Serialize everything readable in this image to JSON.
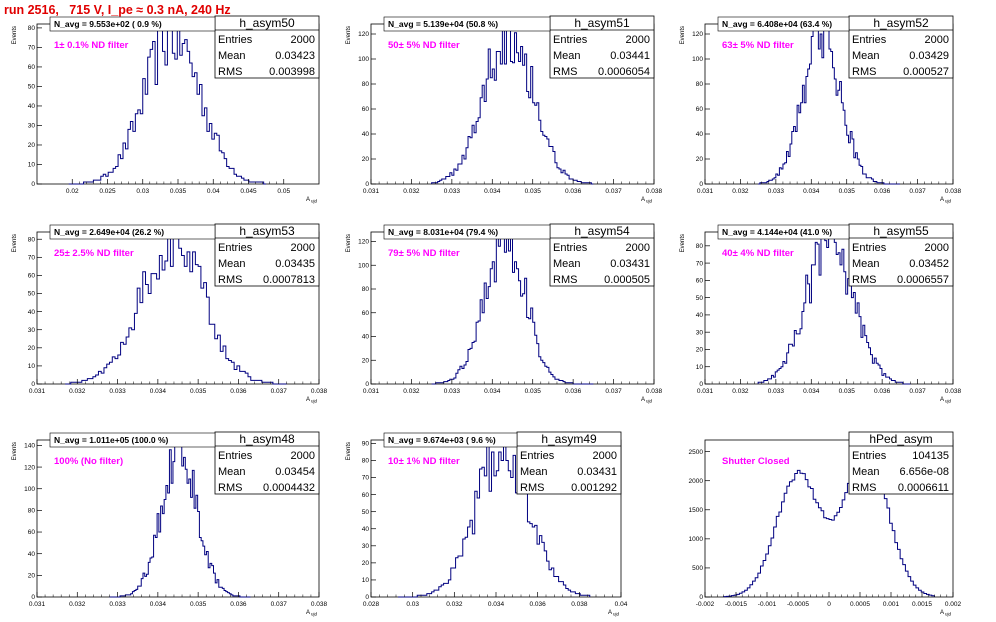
{
  "run_title": "run 2516,   715 V, I_pe ≈ 0.3 nA, 240 Hz",
  "colors": {
    "title": "#e00000",
    "note": "#ff00ff",
    "histogram": "#000080",
    "frame": "#000000"
  },
  "chart_data": [
    {
      "type": "histogram",
      "name": "h_asym50",
      "stats": {
        "entries": "2000",
        "mean": "0.03423",
        "rms": "0.003998"
      },
      "stat_labels": [
        "Entries",
        "Mean",
        "RMS"
      ],
      "n_avg": "N_avg = 9.553e+02 ( 0.9 %)",
      "note": "1± 0.1% ND filter",
      "xlabel": "A_{ujd}",
      "ylabel": "Events",
      "xlim": [
        0.015,
        0.055
      ],
      "ylim": [
        0,
        82
      ],
      "xticks": [
        0.02,
        0.025,
        0.03,
        0.035,
        0.04,
        0.045,
        0.05
      ],
      "xtick_labels": [
        "0.02",
        "0.025",
        "0.03",
        "0.035",
        "0.04",
        "0.045",
        "0.05"
      ],
      "yticks": [
        0,
        10,
        20,
        30,
        40,
        50,
        60,
        70,
        80
      ],
      "ytick_labels": [
        "0",
        "10",
        "20",
        "30",
        "40",
        "50",
        "60",
        "70",
        "80"
      ],
      "bin_edges": [
        0.0195,
        0.0475
      ],
      "shape": {
        "mean": 0.03423,
        "rms": 0.003998,
        "peak": 76
      }
    },
    {
      "type": "histogram",
      "name": "h_asym51",
      "stats": {
        "entries": "2000",
        "mean": "0.03441",
        "rms": "0.0006054"
      },
      "stat_labels": [
        "Entries",
        "Mean",
        "RMS"
      ],
      "n_avg": "N_avg = 5.139e+04 (50.8 %)",
      "note": "50± 5% ND filter",
      "xlabel": "A_{ujd}",
      "ylabel": "Events",
      "xlim": [
        0.031,
        0.038
      ],
      "ylim": [
        0,
        128
      ],
      "xticks": [
        0.031,
        0.032,
        0.033,
        0.034,
        0.035,
        0.036,
        0.037,
        0.038
      ],
      "xtick_labels": [
        "0.031",
        "0.032",
        "0.033",
        "0.034",
        "0.035",
        "0.036",
        "0.037",
        "0.038"
      ],
      "yticks": [
        0,
        20,
        40,
        60,
        80,
        100,
        120
      ],
      "ytick_labels": [
        "0",
        "20",
        "40",
        "60",
        "80",
        "100",
        "120"
      ],
      "bin_edges": [
        0.0325,
        0.0365
      ],
      "shape": {
        "mean": 0.03441,
        "rms": 0.0006054,
        "peak": 124
      }
    },
    {
      "type": "histogram",
      "name": "h_asym52",
      "stats": {
        "entries": "2000",
        "mean": "0.03429",
        "rms": "0.000527"
      },
      "stat_labels": [
        "Entries",
        "Mean",
        "RMS"
      ],
      "n_avg": "N_avg = 6.408e+04 (63.4 %)",
      "note": "63± 5% ND filter",
      "xlabel": "A_{ujd}",
      "ylabel": "Events",
      "xlim": [
        0.031,
        0.038
      ],
      "ylim": [
        0,
        128
      ],
      "xticks": [
        0.031,
        0.032,
        0.033,
        0.034,
        0.035,
        0.036,
        0.037,
        0.038
      ],
      "xtick_labels": [
        "0.031",
        "0.032",
        "0.033",
        "0.034",
        "0.035",
        "0.036",
        "0.037",
        "0.038"
      ],
      "yticks": [
        0,
        20,
        40,
        60,
        80,
        100,
        120
      ],
      "ytick_labels": [
        "0",
        "20",
        "40",
        "60",
        "80",
        "100",
        "120"
      ],
      "bin_edges": [
        0.0325,
        0.0365
      ],
      "shape": {
        "mean": 0.03429,
        "rms": 0.000527,
        "peak": 124
      }
    },
    {
      "type": "histogram",
      "name": "h_asym53",
      "stats": {
        "entries": "2000",
        "mean": "0.03435",
        "rms": "0.0007813"
      },
      "stat_labels": [
        "Entries",
        "Mean",
        "RMS"
      ],
      "n_avg": "N_avg = 2.649e+04 (26.2 %)",
      "note": "25± 2.5% ND filter",
      "xlabel": "A_{ujd}",
      "ylabel": "Events",
      "xlim": [
        0.031,
        0.038
      ],
      "ylim": [
        0,
        84
      ],
      "xticks": [
        0.031,
        0.032,
        0.033,
        0.034,
        0.035,
        0.036,
        0.037,
        0.038
      ],
      "xtick_labels": [
        "0.031",
        "0.032",
        "0.033",
        "0.034",
        "0.035",
        "0.036",
        "0.037",
        "0.038"
      ],
      "yticks": [
        0,
        10,
        20,
        30,
        40,
        50,
        60,
        70,
        80
      ],
      "ytick_labels": [
        "0",
        "10",
        "20",
        "30",
        "40",
        "50",
        "60",
        "70",
        "80"
      ],
      "bin_edges": [
        0.0317,
        0.0372
      ],
      "shape": {
        "mean": 0.03435,
        "rms": 0.0007813,
        "peak": 80
      }
    },
    {
      "type": "histogram",
      "name": "h_asym54",
      "stats": {
        "entries": "2000",
        "mean": "0.03431",
        "rms": "0.000505"
      },
      "stat_labels": [
        "Entries",
        "Mean",
        "RMS"
      ],
      "n_avg": "N_avg = 8.031e+04 (79.4 %)",
      "note": "79± 5% ND filter",
      "xlabel": "A_{ujd}",
      "ylabel": "Events",
      "xlim": [
        0.031,
        0.038
      ],
      "ylim": [
        0,
        128
      ],
      "xticks": [
        0.031,
        0.032,
        0.033,
        0.034,
        0.035,
        0.036,
        0.037,
        0.038
      ],
      "xtick_labels": [
        "0.031",
        "0.032",
        "0.033",
        "0.034",
        "0.035",
        "0.036",
        "0.037",
        "0.038"
      ],
      "yticks": [
        0,
        20,
        40,
        60,
        80,
        100,
        120
      ],
      "ytick_labels": [
        "0",
        "20",
        "40",
        "60",
        "80",
        "100",
        "120"
      ],
      "bin_edges": [
        0.0325,
        0.0365
      ],
      "shape": {
        "mean": 0.03431,
        "rms": 0.000505,
        "peak": 124
      }
    },
    {
      "type": "histogram",
      "name": "h_asym55",
      "stats": {
        "entries": "2000",
        "mean": "0.03452",
        "rms": "0.0006557"
      },
      "stat_labels": [
        "Entries",
        "Mean",
        "RMS"
      ],
      "n_avg": "N_avg = 4.144e+04 (41.0 %)",
      "note": "40± 4% ND filter",
      "xlabel": "A_{ujd}",
      "ylabel": "Events",
      "xlim": [
        0.031,
        0.038
      ],
      "ylim": [
        0,
        88
      ],
      "xticks": [
        0.031,
        0.032,
        0.033,
        0.034,
        0.035,
        0.036,
        0.037,
        0.038
      ],
      "xtick_labels": [
        "0.031",
        "0.032",
        "0.033",
        "0.034",
        "0.035",
        "0.036",
        "0.037",
        "0.038"
      ],
      "yticks": [
        0,
        10,
        20,
        30,
        40,
        50,
        60,
        70,
        80
      ],
      "ytick_labels": [
        "0",
        "10",
        "20",
        "30",
        "40",
        "50",
        "60",
        "70",
        "80"
      ],
      "bin_edges": [
        0.0325,
        0.0368
      ],
      "shape": {
        "mean": 0.03452,
        "rms": 0.0006557,
        "peak": 85
      }
    },
    {
      "type": "histogram",
      "name": "h_asym48",
      "stats": {
        "entries": "2000",
        "mean": "0.03454",
        "rms": "0.0004432"
      },
      "stat_labels": [
        "Entries",
        "Mean",
        "RMS"
      ],
      "n_avg": "N_avg = 1.011e+05 (100.0 %)",
      "note": "100% (No filter)",
      "xlabel": "A_{ujd}",
      "ylabel": "Events",
      "xlim": [
        0.031,
        0.038
      ],
      "ylim": [
        0,
        145
      ],
      "xticks": [
        0.031,
        0.032,
        0.033,
        0.034,
        0.035,
        0.036,
        0.037,
        0.038
      ],
      "xtick_labels": [
        "0.031",
        "0.032",
        "0.033",
        "0.034",
        "0.035",
        "0.036",
        "0.037",
        "0.038"
      ],
      "yticks": [
        0,
        20,
        40,
        60,
        80,
        100,
        120,
        140
      ],
      "ytick_labels": [
        "0",
        "20",
        "40",
        "60",
        "80",
        "100",
        "120",
        "140"
      ],
      "bin_edges": [
        0.0328,
        0.0363
      ],
      "shape": {
        "mean": 0.03454,
        "rms": 0.0004432,
        "peak": 135
      }
    },
    {
      "type": "histogram",
      "name": "h_asym49",
      "stats": {
        "entries": "2000",
        "mean": "0.03431",
        "rms": "0.001292"
      },
      "stat_labels": [
        "Entries",
        "Mean",
        "RMS"
      ],
      "n_avg": "N_avg = 9.674e+03 ( 9.6 %)",
      "note": "10± 1% ND filter",
      "xlabel": "A_{ujd}",
      "ylabel": "Events",
      "xlim": [
        0.028,
        0.04
      ],
      "ylim": [
        0,
        92
      ],
      "xticks": [
        0.028,
        0.03,
        0.032,
        0.034,
        0.036,
        0.038,
        0.04
      ],
      "xtick_labels": [
        "0.028",
        "0.03",
        "0.032",
        "0.034",
        "0.036",
        "0.038",
        "0.04"
      ],
      "yticks": [
        0,
        10,
        20,
        30,
        40,
        50,
        60,
        70,
        80,
        90
      ],
      "ytick_labels": [
        "0",
        "10",
        "20",
        "30",
        "40",
        "50",
        "60",
        "70",
        "80",
        "90"
      ],
      "bin_edges": [
        0.0293,
        0.0385
      ],
      "shape": {
        "mean": 0.03431,
        "rms": 0.001292,
        "peak": 85
      }
    },
    {
      "type": "histogram",
      "name": "hPed_asym",
      "stats": {
        "entries": "104135",
        "mean": "6.656e-08",
        "rms": "0.0006611"
      },
      "stat_labels": [
        "Entries",
        "Mean",
        "RMS"
      ],
      "n_avg": "",
      "note": "Shutter Closed",
      "xlabel": "A_{ujd}",
      "ylabel": "",
      "xlim": [
        -0.002,
        0.002
      ],
      "ylim": [
        0,
        2700
      ],
      "xticks": [
        -0.002,
        -0.0015,
        -0.001,
        -0.0005,
        0,
        0.0005,
        0.001,
        0.0015,
        0.002
      ],
      "xtick_labels": [
        "-0.002",
        "-0.0015",
        "-0.001",
        "-0.0005",
        "0",
        "0.0005",
        "0.001",
        "0.0015",
        "0.002"
      ],
      "yticks": [
        0,
        500,
        1000,
        1500,
        2000,
        2500
      ],
      "ytick_labels": [
        "0",
        "500",
        "1000",
        "1500",
        "2000",
        "2500"
      ],
      "bin_edges": [
        -0.0017,
        0.0017
      ],
      "shape": {
        "bimodal": true,
        "peak_left": -0.0005,
        "peak_right": 0.0006,
        "peak": 2550,
        "dip": 1400
      }
    }
  ]
}
